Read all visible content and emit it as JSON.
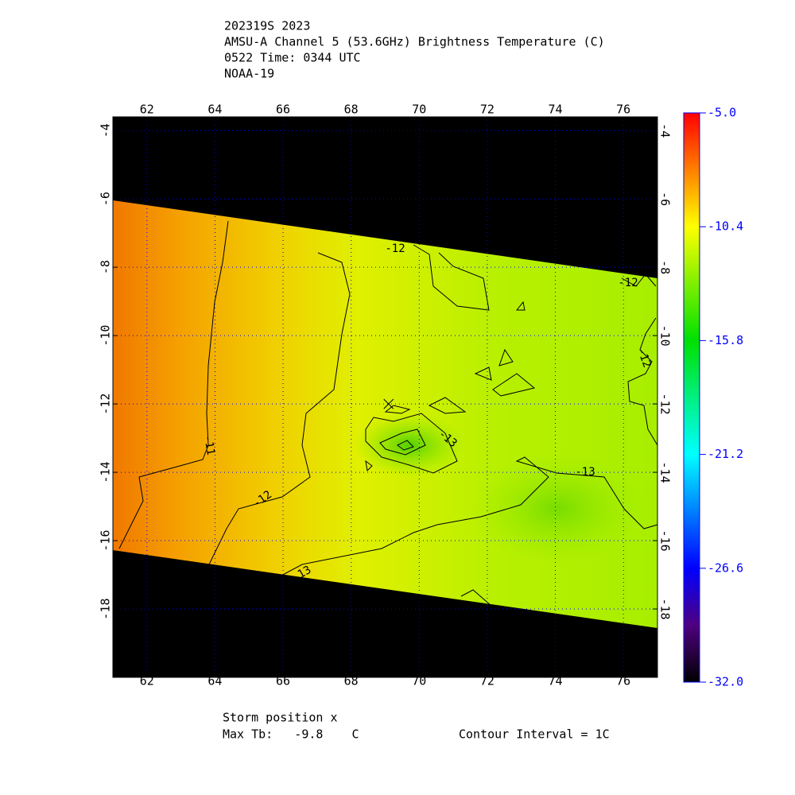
{
  "header": {
    "lines": [
      "202319S 2023",
      "AMSU-A Channel 5 (53.6GHz) Brightness Temperature (C)",
      "0522 Time: 0344 UTC",
      "NOAA-19"
    ]
  },
  "map": {
    "xlim": [
      61,
      77
    ],
    "ylim": [
      -20,
      -3.6
    ],
    "xticks": [
      62,
      64,
      66,
      68,
      70,
      72,
      74,
      76
    ],
    "yticks": [
      -4,
      -6,
      -8,
      -10,
      -12,
      -14,
      -16,
      -18
    ],
    "grid": true,
    "grid_color": "#0000ff",
    "storm_position": {
      "lon": 69.1,
      "lat": -12
    },
    "contour_labels": [
      -12,
      -12,
      -12,
      -11,
      -12,
      -13,
      -13,
      13
    ]
  },
  "colorbar": {
    "lim": [
      -32,
      -5
    ],
    "ticks": [
      {
        "value": -5,
        "label": "-5.0"
      },
      -10.4,
      -15.8,
      -21.2,
      -26.6,
      {
        "value": -32,
        "label": "-32.0"
      }
    ],
    "label_color": "#0000ff"
  },
  "footer": {
    "storm": "Storm position x",
    "max_tb": "Max Tb:   -9.8    C",
    "contour_interval": "Contour Interval = 1C"
  }
}
